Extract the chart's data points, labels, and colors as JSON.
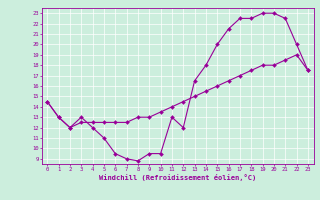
{
  "xlabel": "Windchill (Refroidissement éolien,°C)",
  "bg_color": "#cceedd",
  "grid_color": "#ffffff",
  "line_color": "#990099",
  "marker_color": "#990099",
  "series1_x": [
    0,
    1,
    2,
    3,
    4,
    5,
    6,
    7,
    8,
    9,
    10,
    11,
    12,
    13,
    14,
    15,
    16,
    17,
    18,
    19,
    20,
    21,
    22,
    23
  ],
  "series1_y": [
    14.5,
    13.0,
    12.0,
    13.0,
    12.0,
    11.0,
    9.5,
    9.0,
    8.8,
    9.5,
    9.5,
    13.0,
    12.0,
    16.5,
    18.0,
    20.0,
    21.5,
    22.5,
    22.5,
    23.0,
    23.0,
    22.5,
    20.0,
    17.5
  ],
  "series2_x": [
    0,
    1,
    2,
    3,
    4,
    5,
    6,
    7,
    8,
    9,
    10,
    11,
    12,
    13,
    14,
    15,
    16,
    17,
    18,
    19,
    20,
    21,
    22,
    23
  ],
  "series2_y": [
    14.5,
    13.0,
    12.0,
    12.5,
    12.5,
    12.5,
    12.5,
    12.5,
    13.0,
    13.0,
    13.5,
    14.0,
    14.5,
    15.0,
    15.5,
    16.0,
    16.5,
    17.0,
    17.5,
    18.0,
    18.0,
    18.5,
    19.0,
    17.5
  ],
  "xlim": [
    -0.5,
    23.5
  ],
  "ylim": [
    8.5,
    23.5
  ],
  "yticks": [
    9,
    10,
    11,
    12,
    13,
    14,
    15,
    16,
    17,
    18,
    19,
    20,
    21,
    22,
    23
  ],
  "xticks": [
    0,
    1,
    2,
    3,
    4,
    5,
    6,
    7,
    8,
    9,
    10,
    11,
    12,
    13,
    14,
    15,
    16,
    17,
    18,
    19,
    20,
    21,
    22,
    23
  ]
}
